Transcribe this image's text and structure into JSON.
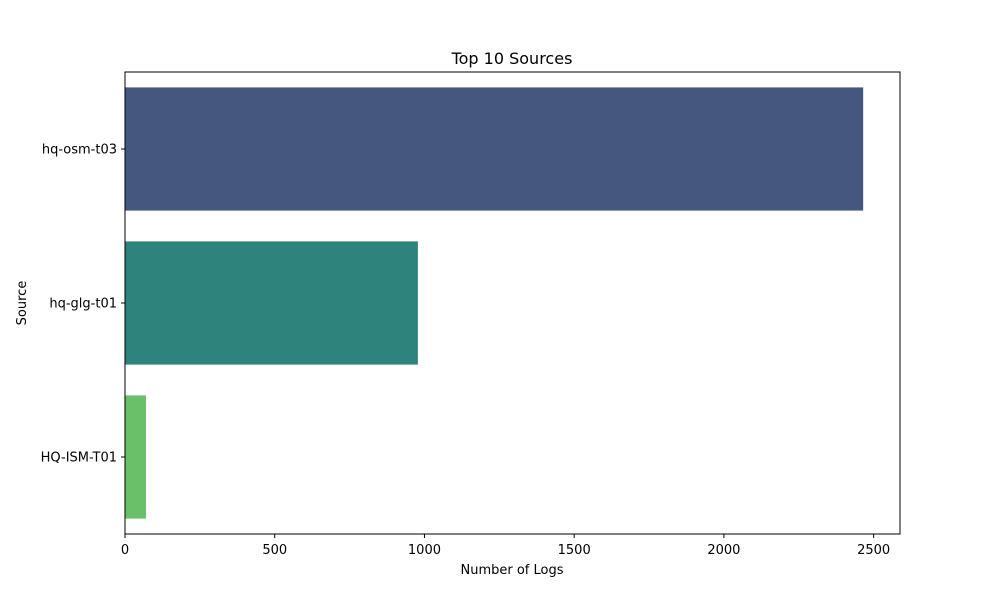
{
  "chart_data": {
    "type": "bar",
    "orientation": "horizontal",
    "title": "Top 10 Sources",
    "xlabel": "Number of Logs",
    "ylabel": "Source",
    "categories": [
      "hq-osm-t03",
      "hq-glg-t01",
      "HQ-ISM-T01"
    ],
    "values": [
      2465,
      978,
      70
    ],
    "colors": [
      "#46577f",
      "#2e837c",
      "#6abf69"
    ],
    "xlim": [
      0,
      2588
    ],
    "xticks": [
      0,
      500,
      1000,
      1500,
      2000,
      2500
    ],
    "grid": false,
    "legend": false
  }
}
